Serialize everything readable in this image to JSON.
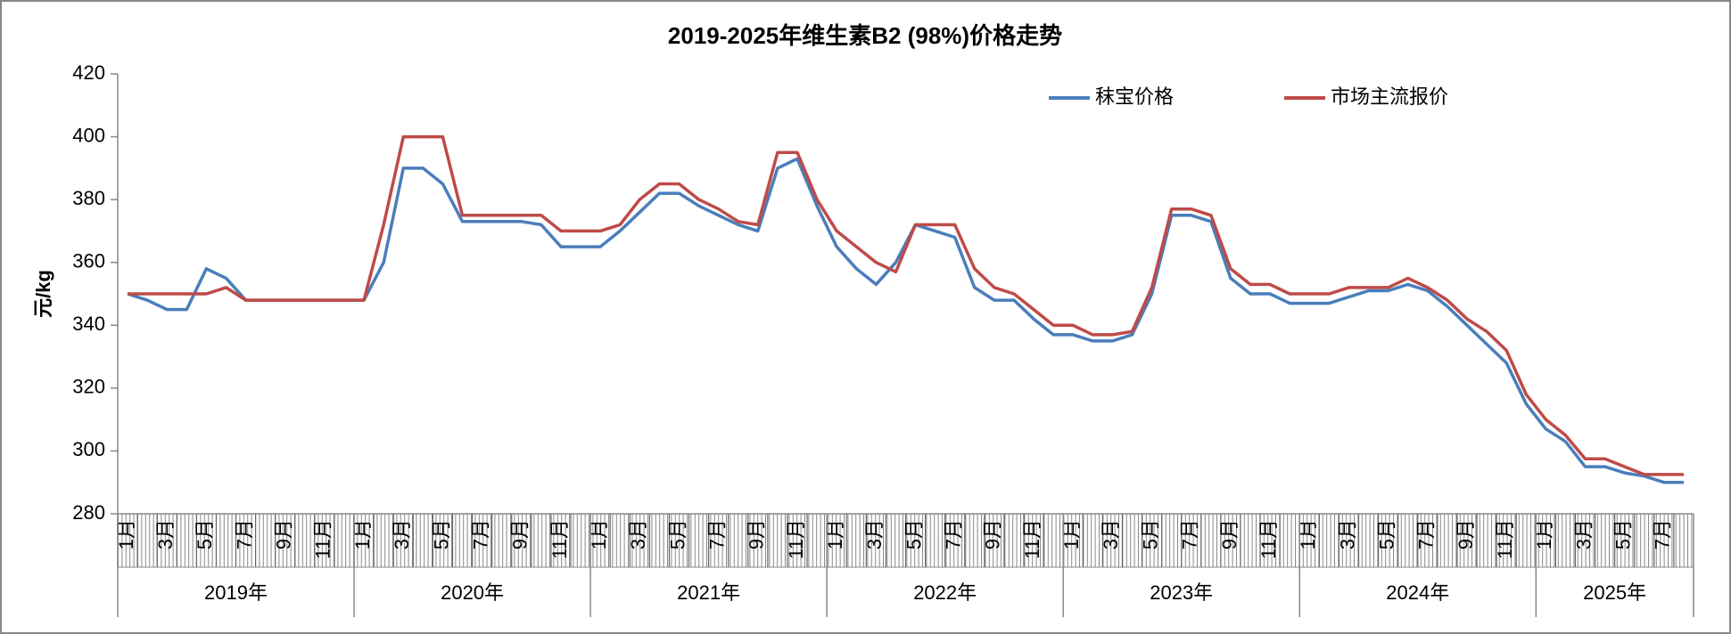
{
  "chart_data": {
    "type": "line",
    "title": "2019-2025年维生素B2 (98%)价格走势",
    "y_label": "元/kg",
    "ylim": [
      280,
      420
    ],
    "yticks": [
      280,
      300,
      320,
      340,
      360,
      380,
      400,
      420
    ],
    "legend": "top-right",
    "categories": [
      "1月",
      null,
      "3月",
      null,
      "5月",
      null,
      "7月",
      null,
      "9月",
      null,
      "11月",
      null,
      "1月",
      null,
      "3月",
      null,
      "5月",
      null,
      "7月",
      null,
      "9月",
      null,
      "11月",
      null,
      "1月",
      null,
      "3月",
      null,
      "5月",
      null,
      "7月",
      null,
      "9月",
      null,
      "11月",
      null,
      "1月",
      null,
      "3月",
      null,
      "5月",
      null,
      "7月",
      null,
      "9月",
      null,
      "11月",
      null,
      "1月",
      null,
      "3月",
      null,
      "5月",
      null,
      "7月",
      null,
      "9月",
      null,
      "11月",
      null,
      "1月",
      null,
      "3月",
      null,
      "5月",
      null,
      "7月",
      null,
      "9月",
      null,
      "11月",
      null,
      "1月",
      null,
      "3月",
      null,
      "5月",
      null,
      "7月",
      null
    ],
    "year_groups": [
      "2019年",
      "2020年",
      "2021年",
      "2022年",
      "2023年",
      "2024年",
      "2025年"
    ],
    "series": [
      {
        "name": "秣宝价格",
        "color": "#4a7ebb",
        "values": [
          350,
          348,
          345,
          345,
          358,
          355,
          348,
          348,
          348,
          348,
          348,
          348,
          348,
          360,
          390,
          390,
          385,
          373,
          373,
          373,
          373,
          372,
          365,
          365,
          365,
          370,
          376,
          382,
          382,
          378,
          375,
          372,
          370,
          390,
          393,
          378,
          365,
          358,
          353,
          360,
          372,
          370,
          368,
          352,
          348,
          348,
          342,
          337,
          337,
          335,
          335,
          337,
          350,
          375,
          375,
          373,
          355,
          350,
          350,
          347,
          347,
          347,
          349,
          351,
          351,
          353,
          351,
          346,
          340,
          334,
          328,
          315,
          307,
          303,
          295,
          295,
          293,
          292,
          290,
          290
        ]
      },
      {
        "name": "市场主流报价",
        "color": "#be4b48",
        "values": [
          350,
          350,
          350,
          350,
          350,
          352,
          348,
          348,
          348,
          348,
          348,
          348,
          348,
          372,
          400,
          400,
          400,
          375,
          375,
          375,
          375,
          375,
          370,
          370,
          370,
          372,
          380,
          385,
          385,
          380,
          377,
          373,
          372,
          395,
          395,
          380,
          370,
          365,
          360,
          357,
          372,
          372,
          372,
          358,
          352,
          350,
          345,
          340,
          340,
          337,
          337,
          338,
          352,
          377,
          377,
          375,
          358,
          353,
          353,
          350,
          350,
          350,
          352,
          352,
          352,
          355,
          352,
          348,
          342,
          338,
          332,
          318,
          310,
          305,
          297.5,
          297.5,
          295,
          292.5,
          292.5,
          292.5
        ]
      }
    ]
  }
}
